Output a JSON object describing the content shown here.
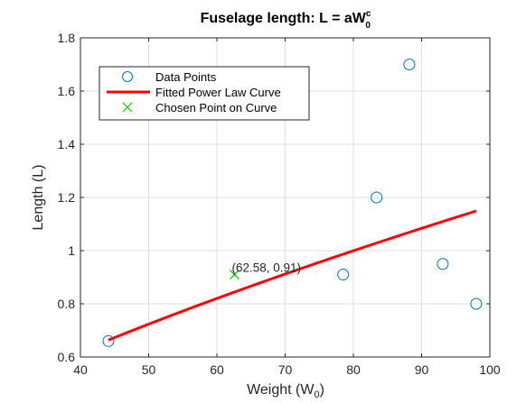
{
  "chart_data": {
    "type": "scatter",
    "title_prefix": "Fuselage  length:  L  =  aW",
    "title_sub": "0",
    "title_sup": "c",
    "xlabel_prefix": "Weight  (W",
    "xlabel_sub": "0",
    "xlabel_suffix": ")",
    "ylabel": "Length (L)",
    "xlim": [
      40,
      100
    ],
    "ylim": [
      0.6,
      1.8
    ],
    "xticks": [
      40,
      50,
      60,
      70,
      80,
      90,
      100
    ],
    "yticks": [
      0.6,
      0.8,
      1,
      1.2,
      1.4,
      1.6,
      1.8
    ],
    "xtick_labels": [
      "40",
      "50",
      "60",
      "70",
      "80",
      "90",
      "100"
    ],
    "ytick_labels": [
      "0.6",
      "0.8",
      "1",
      "1.2",
      "1.4",
      "1.6",
      "1.8"
    ],
    "grid": true,
    "legend_position": "top-left",
    "series": [
      {
        "name": "Data Points",
        "kind": "scatter",
        "marker": "circle",
        "color": "#0072BD",
        "x": [
          44.1,
          78.5,
          83.4,
          88.2,
          93.1,
          98.0
        ],
        "y": [
          0.66,
          0.91,
          1.2,
          1.7,
          0.95,
          0.8
        ]
      },
      {
        "name": "Fitted Power Law Curve",
        "kind": "line",
        "color": "#FF0000",
        "x_range": [
          44.1,
          98.0
        ],
        "power_law": {
          "a": 0.04914,
          "c": 0.6875
        }
      },
      {
        "name": "Chosen Point on Curve",
        "kind": "scatter",
        "marker": "x",
        "color": "#00CC00",
        "x": [
          62.58
        ],
        "y": [
          0.91
        ]
      }
    ],
    "annotations": [
      {
        "text": "(62.58, 0.91)",
        "x": 62.58,
        "y": 0.91
      }
    ]
  }
}
